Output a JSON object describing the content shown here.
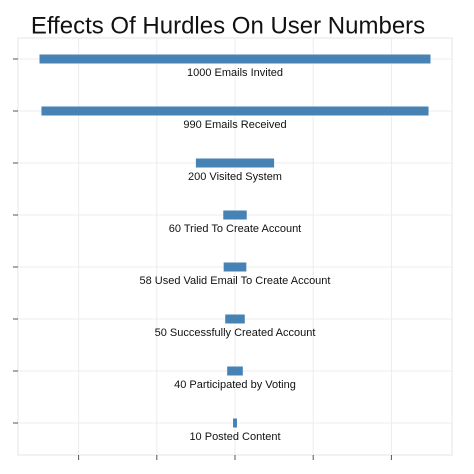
{
  "chart_data": {
    "type": "funnel",
    "title": "Effects Of Hurdles On User Numbers",
    "categories": [
      "1000 Emails Invited",
      "990 Emails Received",
      "200 Visited System",
      "60 Tried To Create Account",
      "58 Used Valid Email To Create Account",
      "50 Successfully Created Account",
      "40 Participated by Voting",
      "10 Posted Content"
    ],
    "values": [
      1000,
      990,
      200,
      60,
      58,
      50,
      40,
      10
    ],
    "color": "#4682b4",
    "xlim": [
      -555,
      555
    ],
    "xticks": [
      -400,
      -200,
      0,
      200,
      400
    ],
    "grid": true
  }
}
